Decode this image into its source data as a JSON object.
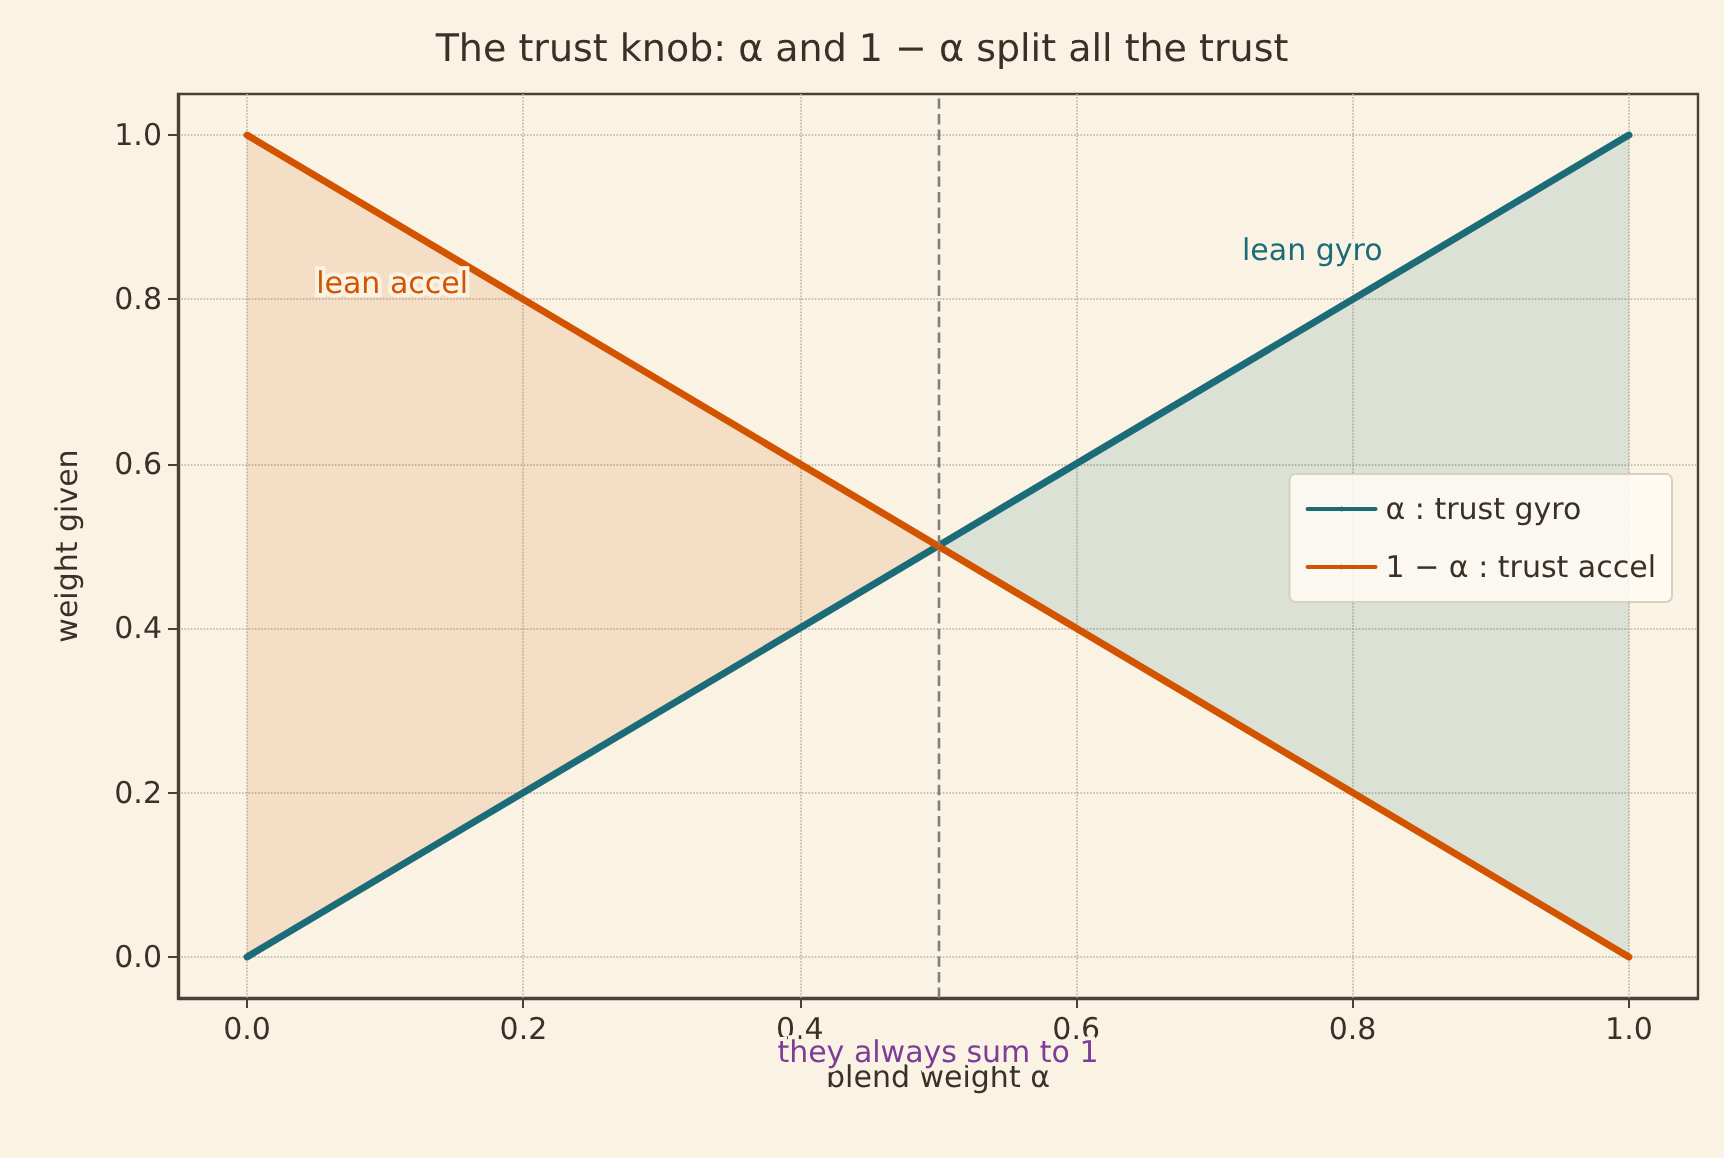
{
  "chart_data": {
    "type": "line",
    "title": "The trust knob: α and 1 − α split all the trust",
    "xlabel": "blend weight α",
    "ylabel": "weight given",
    "xlim": [
      -0.05,
      1.05
    ],
    "ylim": [
      -0.05,
      1.05
    ],
    "xticks": [
      {
        "value": 0,
        "label": "0.0"
      },
      {
        "value": 0.2,
        "label": "0.2"
      },
      {
        "value": 0.4,
        "label": "0.4"
      },
      {
        "value": 0.6,
        "label": "0.6"
      },
      {
        "value": 0.8,
        "label": "0.8"
      },
      {
        "value": 1,
        "label": "1.0"
      }
    ],
    "yticks": [
      {
        "value": 0,
        "label": "0.0"
      },
      {
        "value": 0.2,
        "label": "0.2"
      },
      {
        "value": 0.4,
        "label": "0.4"
      },
      {
        "value": 0.6,
        "label": "0.6"
      },
      {
        "value": 0.8,
        "label": "0.8"
      },
      {
        "value": 1,
        "label": "1.0"
      }
    ],
    "series": [
      {
        "name": "α : trust gyro",
        "color": "#1b6b78",
        "x": [
          0,
          0.5,
          1
        ],
        "values": [
          0,
          0.5,
          1
        ],
        "lower": [
          null,
          0.5,
          0
        ],
        "upper": [
          null,
          0.5,
          1
        ]
      },
      {
        "name": "1 − α : trust accel",
        "color": "#d35400",
        "x": [
          0,
          0.5,
          1
        ],
        "values": [
          1,
          0.5,
          0
        ],
        "lower": [
          0,
          0.5,
          null
        ],
        "upper": [
          1,
          0.5,
          null
        ]
      }
    ],
    "ref_lines": [
      {
        "axis": "x",
        "value": 0.5,
        "color": "#7f7f7f",
        "line_style": "dashed"
      }
    ],
    "annotations": [
      "lean accel",
      "lean gyro",
      "they always sum to 1"
    ],
    "grid": true,
    "legend": "right",
    "marker": "none",
    "line_style": "solid"
  }
}
